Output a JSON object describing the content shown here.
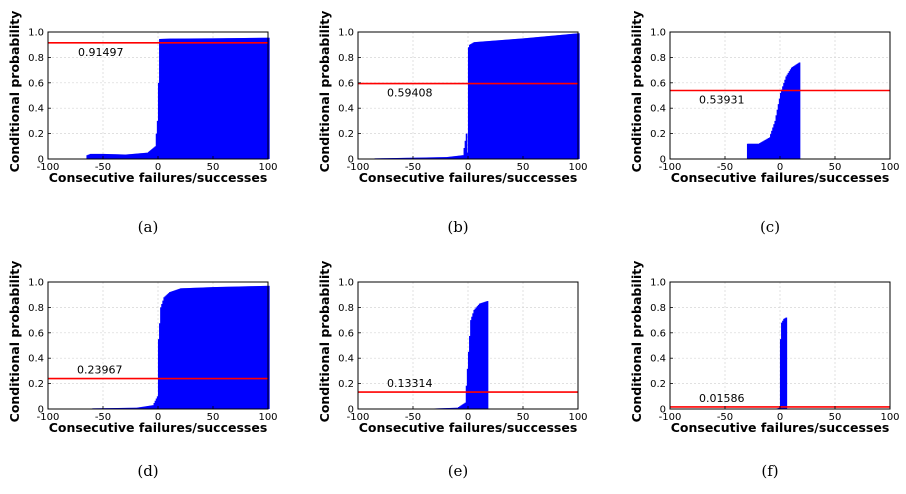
{
  "chart_data": [
    {
      "type": "area",
      "caption": "(a)",
      "xlabel": "Consecutive failures/successes",
      "ylabel": "Conditional probability",
      "xlim": [
        -100,
        100
      ],
      "ylim": [
        0,
        1
      ],
      "xticks": [
        "-100",
        "-50",
        "0",
        "50",
        "100"
      ],
      "yticks": [
        "0",
        "0.2",
        "0.4",
        "0.6",
        "0.8",
        "1.0"
      ],
      "grid": true,
      "bar_color": "#0000ff",
      "reference_line": {
        "value": 0.91497,
        "label": "0.91497",
        "color": "#ff0000"
      },
      "series": [
        {
          "x": [
            -65,
            -62,
            -50,
            -30,
            -10,
            -3,
            -1,
            0,
            1,
            10,
            50,
            100
          ],
          "y": [
            0.03,
            0.04,
            0.04,
            0.035,
            0.05,
            0.1,
            0.3,
            0.6,
            0.945,
            0.948,
            0.95,
            0.955
          ]
        }
      ]
    },
    {
      "type": "area",
      "caption": "(b)",
      "xlabel": "Consecutive failures/successes",
      "ylabel": "Conditional probability",
      "xlim": [
        -100,
        100
      ],
      "ylim": [
        0,
        1
      ],
      "xticks": [
        "-100",
        "-50",
        "0",
        "50",
        "100"
      ],
      "yticks": [
        "0",
        "0.2",
        "0.4",
        "0.6",
        "0.8",
        "1.0"
      ],
      "grid": true,
      "bar_color": "#0000ff",
      "reference_line": {
        "value": 0.59408,
        "label": "0.59408",
        "color": "#ff0000"
      },
      "series": [
        {
          "x": [
            -85,
            -50,
            -20,
            -5,
            -2,
            -1,
            0,
            1,
            5,
            50,
            100
          ],
          "y": [
            0.005,
            0.01,
            0.015,
            0.03,
            0.2,
            0.05,
            0.88,
            0.9,
            0.92,
            0.95,
            0.99
          ]
        }
      ]
    },
    {
      "type": "area",
      "caption": "(c)",
      "xlabel": "Consecutive failures/successes",
      "ylabel": "Conditional probability",
      "xlim": [
        -100,
        100
      ],
      "ylim": [
        0,
        1
      ],
      "xticks": [
        "-100",
        "-50",
        "0",
        "50",
        "100"
      ],
      "yticks": [
        "0",
        "0.2",
        "0.4",
        "0.6",
        "0.8",
        "1.0"
      ],
      "grid": true,
      "bar_color": "#0000ff",
      "reference_line": {
        "value": 0.53931,
        "label": "0.53931",
        "color": "#ff0000"
      },
      "series": [
        {
          "x": [
            -30,
            -20,
            -10,
            -5,
            0,
            5,
            10,
            17
          ],
          "y": [
            0.12,
            0.12,
            0.17,
            0.3,
            0.52,
            0.65,
            0.72,
            0.76
          ]
        }
      ]
    },
    {
      "type": "area",
      "caption": "(d)",
      "xlabel": "Consecutive failures/successes",
      "ylabel": "Conditional probability",
      "xlim": [
        -100,
        100
      ],
      "ylim": [
        0,
        1
      ],
      "xticks": [
        "-100",
        "-50",
        "0",
        "50",
        "100"
      ],
      "yticks": [
        "0",
        "0.2",
        "0.4",
        "0.6",
        "0.8",
        "1.0"
      ],
      "grid": true,
      "bar_color": "#0000ff",
      "reference_line": {
        "value": 0.23967,
        "label": "0.23967",
        "color": "#ff0000"
      },
      "series": [
        {
          "x": [
            -60,
            -20,
            -5,
            -1,
            0,
            2,
            5,
            10,
            20,
            50,
            100
          ],
          "y": [
            0.005,
            0.01,
            0.03,
            0.1,
            0.55,
            0.8,
            0.88,
            0.92,
            0.95,
            0.96,
            0.97
          ]
        }
      ]
    },
    {
      "type": "area",
      "caption": "(e)",
      "xlabel": "Consecutive failures/successes",
      "ylabel": "Conditional probability",
      "xlim": [
        -100,
        100
      ],
      "ylim": [
        0,
        1
      ],
      "xticks": [
        "-100",
        "-50",
        "0",
        "50",
        "100"
      ],
      "yticks": [
        "0",
        "0.2",
        "0.4",
        "0.6",
        "0.8",
        "1.0"
      ],
      "grid": true,
      "bar_color": "#0000ff",
      "reference_line": {
        "value": 0.13314,
        "label": "0.13314",
        "color": "#ff0000"
      },
      "series": [
        {
          "x": [
            -35,
            -10,
            -3,
            0,
            2,
            5,
            10,
            17
          ],
          "y": [
            0.003,
            0.01,
            0.05,
            0.45,
            0.7,
            0.78,
            0.83,
            0.85
          ]
        }
      ]
    },
    {
      "type": "area",
      "caption": "(f)",
      "xlabel": "Consecutive failures/successes",
      "ylabel": "Conditional probability",
      "xlim": [
        -100,
        100
      ],
      "ylim": [
        0,
        1
      ],
      "xticks": [
        "-100",
        "-50",
        "0",
        "50",
        "100"
      ],
      "yticks": [
        "0",
        "0.2",
        "0.4",
        "0.6",
        "0.8",
        "1.0"
      ],
      "grid": true,
      "bar_color": "#0000ff",
      "reference_line": {
        "value": 0.01586,
        "label": "0.01586",
        "color": "#ff0000"
      },
      "series": [
        {
          "x": [
            -3,
            -1,
            0,
            1,
            3,
            5
          ],
          "y": [
            0.005,
            0.01,
            0.55,
            0.68,
            0.71,
            0.72
          ]
        }
      ]
    }
  ]
}
